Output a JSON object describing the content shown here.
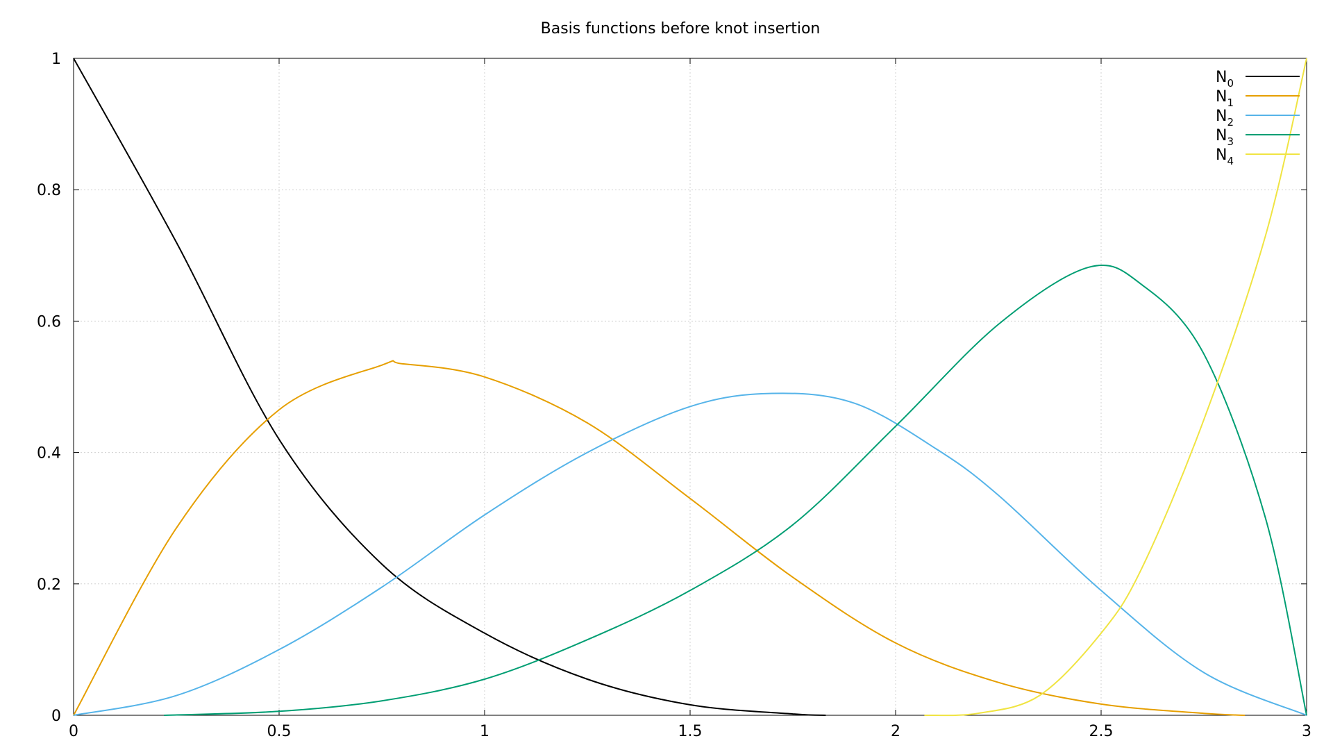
{
  "chart_data": {
    "type": "line",
    "title": "Basis functions before knot insertion",
    "xlabel": "",
    "ylabel": "",
    "xlim": [
      0,
      3
    ],
    "ylim": [
      0,
      1
    ],
    "xticks": [
      0,
      0.5,
      1,
      1.5,
      2,
      2.5,
      3
    ],
    "xtick_labels": [
      "0",
      "0.5",
      "1",
      "1.5",
      "2",
      "2.5",
      "3"
    ],
    "yticks": [
      0,
      0.2,
      0.4,
      0.6,
      0.8,
      1
    ],
    "ytick_labels": [
      "0",
      "0.2",
      "0.4",
      "0.6",
      "0.8",
      "1"
    ],
    "grid": true,
    "legend_position": "top-right",
    "series": [
      {
        "name": "N0",
        "base": "N",
        "sub": "0",
        "color": "#000000",
        "points": [
          [
            0,
            1
          ],
          [
            0.25,
            0.72
          ],
          [
            0.5,
            0.42
          ],
          [
            0.75,
            0.23
          ],
          [
            1,
            0.125
          ],
          [
            1.25,
            0.055
          ],
          [
            1.5,
            0.016
          ],
          [
            1.75,
            0.002
          ],
          [
            1.83,
            0
          ]
        ]
      },
      {
        "name": "N1",
        "base": "N",
        "sub": "1",
        "color": "#e69f00",
        "points": [
          [
            0,
            0
          ],
          [
            0.25,
            0.285
          ],
          [
            0.5,
            0.465
          ],
          [
            0.75,
            0.533
          ],
          [
            0.8,
            0.535
          ],
          [
            1,
            0.515
          ],
          [
            1.25,
            0.445
          ],
          [
            1.5,
            0.33
          ],
          [
            1.75,
            0.21
          ],
          [
            2,
            0.11
          ],
          [
            2.25,
            0.05
          ],
          [
            2.5,
            0.017
          ],
          [
            2.75,
            0.003
          ],
          [
            2.85,
            0
          ]
        ]
      },
      {
        "name": "N2",
        "base": "N",
        "sub": "2",
        "color": "#56b4e9",
        "points": [
          [
            0,
            0
          ],
          [
            0.25,
            0.03
          ],
          [
            0.5,
            0.1
          ],
          [
            0.75,
            0.195
          ],
          [
            1,
            0.305
          ],
          [
            1.25,
            0.4
          ],
          [
            1.5,
            0.47
          ],
          [
            1.7,
            0.49
          ],
          [
            1.9,
            0.475
          ],
          [
            2.1,
            0.405
          ],
          [
            2.25,
            0.335
          ],
          [
            2.5,
            0.19
          ],
          [
            2.75,
            0.065
          ],
          [
            3,
            0
          ]
        ]
      },
      {
        "name": "N3",
        "base": "N",
        "sub": "3",
        "color": "#009e73",
        "points": [
          [
            0.22,
            0
          ],
          [
            0.5,
            0.006
          ],
          [
            0.75,
            0.022
          ],
          [
            1,
            0.055
          ],
          [
            1.25,
            0.115
          ],
          [
            1.5,
            0.19
          ],
          [
            1.75,
            0.29
          ],
          [
            2,
            0.44
          ],
          [
            2.25,
            0.595
          ],
          [
            2.47,
            0.682
          ],
          [
            2.6,
            0.655
          ],
          [
            2.75,
            0.55
          ],
          [
            2.9,
            0.3
          ],
          [
            3,
            0
          ]
        ]
      },
      {
        "name": "N4",
        "base": "N",
        "sub": "4",
        "color": "#f0e442",
        "points": [
          [
            2.07,
            0
          ],
          [
            2.2,
            0.003
          ],
          [
            2.35,
            0.03
          ],
          [
            2.5,
            0.125
          ],
          [
            2.6,
            0.225
          ],
          [
            2.75,
            0.45
          ],
          [
            2.9,
            0.73
          ],
          [
            3,
            1
          ]
        ]
      }
    ]
  }
}
